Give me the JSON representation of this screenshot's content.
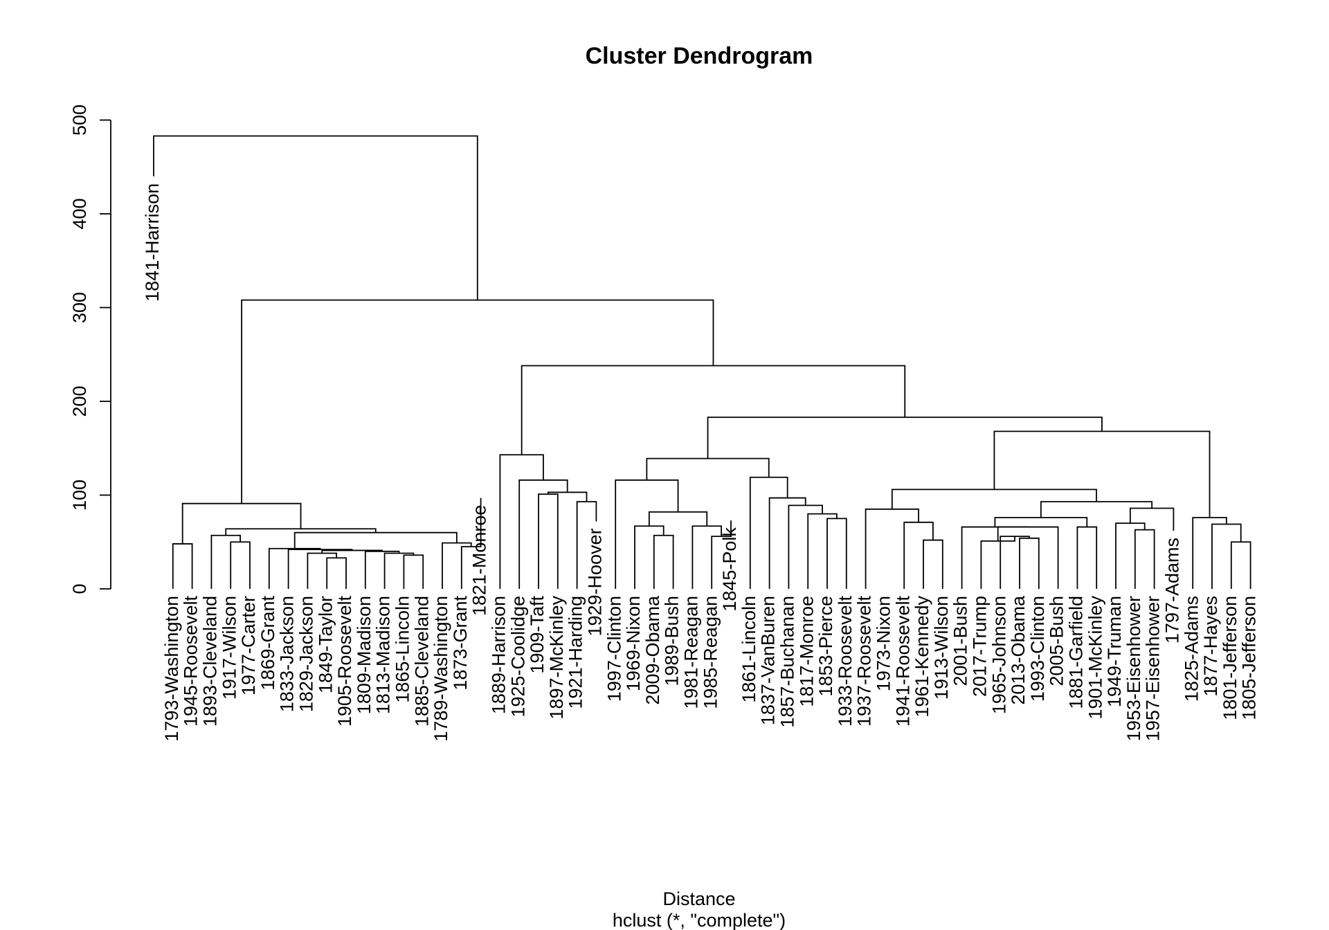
{
  "chart_data": {
    "type": "dendrogram",
    "title": "Cluster Dendrogram",
    "xlabel": "Distance",
    "sub": "hclust (*, \"complete\")",
    "ylabel": "",
    "ylim": [
      0,
      500
    ],
    "yticks": [
      0,
      100,
      200,
      300,
      400,
      500
    ],
    "labels": [
      "1841-Harrison",
      "1793-Washington",
      "1945-Roosevelt",
      "1893-Cleveland",
      "1917-Wilson",
      "1977-Carter",
      "1869-Grant",
      "1833-Jackson",
      "1829-Jackson",
      "1849-Taylor",
      "1905-Roosevelt",
      "1809-Madison",
      "1813-Madison",
      "1865-Lincoln",
      "1885-Cleveland",
      "1789-Washington",
      "1873-Grant",
      "1821-Monroe",
      "1889-Harrison",
      "1925-Coolidge",
      "1909-Taft",
      "1897-McKinley",
      "1921-Harding",
      "1929-Hoover",
      "1997-Clinton",
      "1969-Nixon",
      "2009-Obama",
      "1989-Bush",
      "1981-Reagan",
      "1985-Reagan",
      "1845-Polk",
      "1861-Lincoln",
      "1837-VanBuren",
      "1857-Buchanan",
      "1817-Monroe",
      "1853-Pierce",
      "1933-Roosevelt",
      "1937-Roosevelt",
      "1973-Nixon",
      "1941-Roosevelt",
      "1961-Kennedy",
      "1913-Wilson",
      "2001-Bush",
      "2017-Trump",
      "1965-Johnson",
      "2013-Obama",
      "1993-Clinton",
      "2005-Bush",
      "1881-Garfield",
      "1901-McKinley",
      "1949-Truman",
      "1953-Eisenhower",
      "1957-Eisenhower",
      "1797-Adams",
      "1825-Adams",
      "1877-Hayes",
      "1801-Jefferson",
      "1805-Jefferson"
    ],
    "merges": [
      {
        "children": [
          "1793-Washington",
          "1945-Roosevelt"
        ],
        "height": 48
      },
      {
        "children": [
          "1917-Wilson",
          "1977-Carter"
        ],
        "height": 50
      },
      {
        "children": [
          "1893-Cleveland",
          1
        ],
        "height": 57
      },
      {
        "children": [
          "1849-Taylor",
          "1905-Roosevelt"
        ],
        "height": 33
      },
      {
        "children": [
          "1829-Jackson",
          3
        ],
        "height": 38
      },
      {
        "children": [
          "1865-Lincoln",
          "1885-Cleveland"
        ],
        "height": 36
      },
      {
        "children": [
          "1813-Madison",
          5
        ],
        "height": 38
      },
      {
        "children": [
          "1809-Madison",
          6
        ],
        "height": 40
      },
      {
        "children": [
          4,
          7
        ],
        "height": 41
      },
      {
        "children": [
          "1833-Jackson",
          8
        ],
        "height": 42
      },
      {
        "children": [
          "1869-Grant",
          9
        ],
        "height": 43
      },
      {
        "children": [
          "1873-Grant",
          "1821-Monroe"
        ],
        "height": 45
      },
      {
        "children": [
          "1789-Washington",
          11
        ],
        "height": 49
      },
      {
        "children": [
          10,
          12
        ],
        "height": 60
      },
      {
        "children": [
          2,
          13
        ],
        "height": 64
      },
      {
        "children": [
          0,
          14
        ],
        "height": 91
      },
      {
        "children": [
          "1909-Taft",
          "1897-McKinley"
        ],
        "height": 101
      },
      {
        "children": [
          "1921-Harding",
          "1929-Hoover"
        ],
        "height": 93
      },
      {
        "children": [
          16,
          17
        ],
        "height": 103
      },
      {
        "children": [
          "1925-Coolidge",
          18
        ],
        "height": 116
      },
      {
        "children": [
          "1889-Harrison",
          19
        ],
        "height": 143
      },
      {
        "children": [
          "2009-Obama",
          "1989-Bush"
        ],
        "height": 57
      },
      {
        "children": [
          "1969-Nixon",
          21
        ],
        "height": 67
      },
      {
        "children": [
          "1985-Reagan",
          "1845-Polk"
        ],
        "height": 56
      },
      {
        "children": [
          "1981-Reagan",
          23
        ],
        "height": 67
      },
      {
        "children": [
          22,
          24
        ],
        "height": 82
      },
      {
        "children": [
          "1997-Clinton",
          25
        ],
        "height": 116
      },
      {
        "children": [
          "1853-Pierce",
          "1933-Roosevelt"
        ],
        "height": 75
      },
      {
        "children": [
          "1817-Monroe",
          27
        ],
        "height": 80
      },
      {
        "children": [
          "1857-Buchanan",
          28
        ],
        "height": 89
      },
      {
        "children": [
          "1837-VanBuren",
          29
        ],
        "height": 97
      },
      {
        "children": [
          "1861-Lincoln",
          30
        ],
        "height": 119
      },
      {
        "children": [
          26,
          31
        ],
        "height": 139
      },
      {
        "children": [
          "1961-Kennedy",
          "1913-Wilson"
        ],
        "height": 52
      },
      {
        "children": [
          "1941-Roosevelt",
          33
        ],
        "height": 71
      },
      {
        "children": [
          "1937-Roosevelt",
          34
        ],
        "height": 85
      },
      {
        "children": [
          "2013-Obama",
          "1993-Clinton"
        ],
        "height": 54
      },
      {
        "children": [
          "1965-Johnson",
          36
        ],
        "height": 56
      },
      {
        "children": [
          "2017-Trump",
          37
        ],
        "height": 51
      },
      {
        "children": [
          38,
          "2005-Bush"
        ],
        "height": 66
      },
      {
        "children": [
          "2001-Bush",
          39
        ],
        "height": 66
      },
      {
        "children": [
          "1881-Garfield",
          "1901-McKinley"
        ],
        "height": 66
      },
      {
        "children": [
          40,
          41
        ],
        "height": 76
      },
      {
        "children": [
          "1953-Eisenhower",
          "1957-Eisenhower"
        ],
        "height": 63
      },
      {
        "children": [
          "1949-Truman",
          43
        ],
        "height": 70
      },
      {
        "children": [
          "1797-Adams",
          44
        ],
        "height": 86
      },
      {
        "children": [
          42,
          45
        ],
        "height": 93
      },
      {
        "children": [
          35,
          46
        ],
        "height": 106
      },
      {
        "children": [
          "1801-Jefferson",
          "1805-Jefferson"
        ],
        "height": 50
      },
      {
        "children": [
          "1877-Hayes",
          48
        ],
        "height": 69
      },
      {
        "children": [
          "1825-Adams",
          49
        ],
        "height": 76
      },
      {
        "children": [
          50,
          "1825-Adams"
        ],
        "height": 0,
        "skip": true
      },
      {
        "children": [
          47,
          50
        ],
        "height": 168
      },
      {
        "children": [
          32,
          52
        ],
        "height": 183
      },
      {
        "children": [
          20,
          53
        ],
        "height": 238
      },
      {
        "children": [
          15,
          54
        ],
        "height": 308
      },
      {
        "children": [
          "1841-Harrison",
          55
        ],
        "height": 483
      }
    ],
    "leaf_heights": {
      "1841-Harrison": 440,
      "1821-Monroe": 97,
      "1929-Hoover": 72,
      "1845-Polk": 73,
      "1797-Adams": 62
    }
  }
}
